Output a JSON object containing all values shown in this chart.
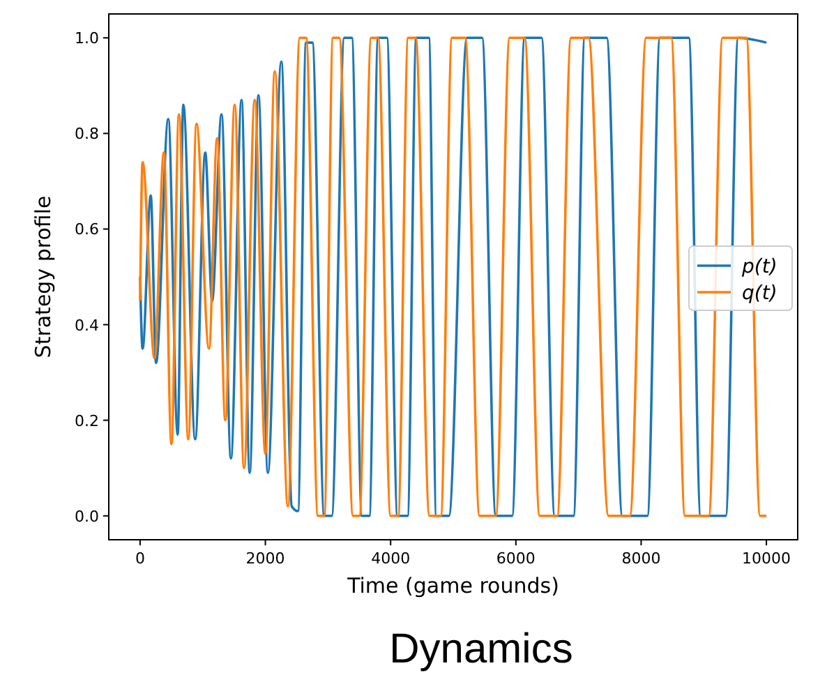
{
  "chart_data": {
    "type": "line",
    "title": "Dynamics",
    "xlabel": "Time (game rounds)",
    "ylabel": "Strategy profile",
    "xlim": [
      -500,
      10500
    ],
    "ylim": [
      -0.05,
      1.05
    ],
    "xticks": [
      0,
      2000,
      4000,
      6000,
      8000,
      10000
    ],
    "yticks": [
      {
        "value": 0,
        "label": "0.0"
      },
      {
        "value": 0.2,
        "label": "0.2"
      },
      {
        "value": 0.4,
        "label": "0.4"
      },
      {
        "value": 0.6,
        "label": "0.6"
      },
      {
        "value": 0.8,
        "label": "0.8"
      },
      {
        "value": 1,
        "label": "1.0"
      }
    ],
    "legend": "right",
    "grid": false,
    "series": [
      {
        "name": "p(t)",
        "color": "#1f77b4",
        "x": [
          0,
          40,
          170,
          255,
          450,
          600,
          690,
          880,
          1040,
          1150,
          1300,
          1450,
          1620,
          1750,
          1890,
          2040,
          2255,
          2420,
          2520,
          2650,
          2750,
          2940,
          3060,
          3260,
          3380,
          3540,
          3660,
          3800,
          3940,
          4110,
          4270,
          4410,
          4610,
          4730,
          4930,
          5220,
          5460,
          5680,
          5940,
          6140,
          6410,
          6620,
          6920,
          7100,
          7450,
          7700,
          8100,
          8300,
          8760,
          8950,
          9350,
          9550,
          10000
        ],
        "values": [
          0.5,
          0.35,
          0.67,
          0.32,
          0.83,
          0.17,
          0.86,
          0.16,
          0.76,
          0.45,
          0.84,
          0.12,
          0.87,
          0.09,
          0.88,
          0.09,
          0.95,
          0.02,
          0.01,
          0.99,
          0.99,
          0,
          0,
          1,
          1,
          0,
          0,
          1,
          1,
          0,
          0,
          1,
          1,
          0,
          0,
          1,
          1,
          0,
          0,
          1,
          1,
          0,
          0,
          1,
          1,
          0,
          0,
          1,
          1,
          0,
          0,
          1,
          0.99
        ]
      },
      {
        "name": "q(t)",
        "color": "#ff7f0e",
        "x": [
          0,
          40,
          230,
          380,
          500,
          620,
          770,
          900,
          1100,
          1230,
          1360,
          1510,
          1660,
          1830,
          2000,
          2150,
          2360,
          2550,
          2650,
          2840,
          2940,
          3080,
          3180,
          3400,
          3500,
          3690,
          3800,
          4000,
          4120,
          4280,
          4400,
          4620,
          4800,
          4980,
          5190,
          5420,
          5680,
          5900,
          6140,
          6380,
          6660,
          6880,
          7160,
          7480,
          7820,
          8080,
          8480,
          8700,
          9080,
          9300,
          9680,
          9900,
          10000
        ],
        "values": [
          0.45,
          0.74,
          0.33,
          0.76,
          0.15,
          0.84,
          0.16,
          0.82,
          0.35,
          0.79,
          0.2,
          0.86,
          0.1,
          0.87,
          0.13,
          0.93,
          0.02,
          1,
          1,
          0,
          0,
          1,
          1,
          0,
          0,
          1,
          1,
          0,
          0,
          1,
          1,
          0,
          0,
          1,
          1,
          0,
          0,
          1,
          1,
          0,
          0,
          1,
          1,
          0,
          0,
          1,
          1,
          0,
          0,
          1,
          1,
          0,
          0
        ]
      }
    ]
  }
}
